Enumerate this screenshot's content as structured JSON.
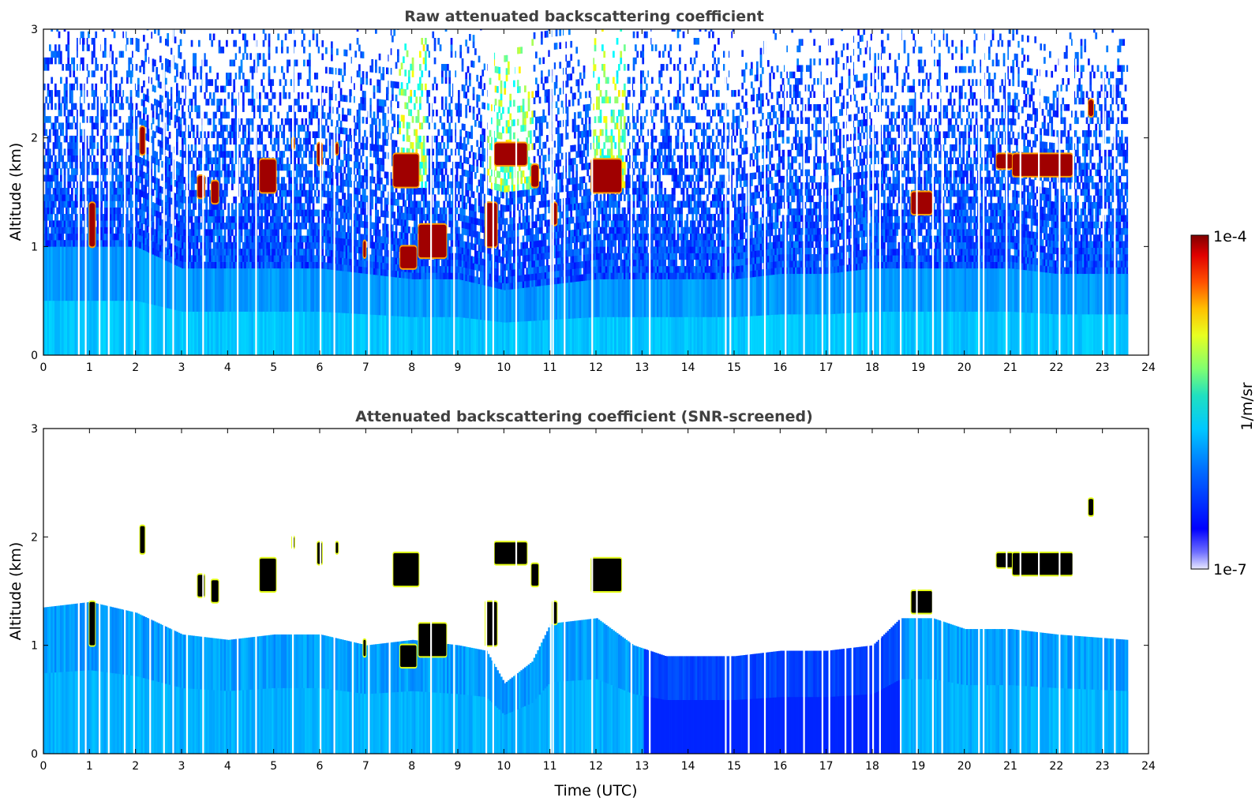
{
  "chart_data": [
    {
      "type": "heatmap",
      "title": "Raw attenuated backscattering coefficient",
      "xlabel": "",
      "ylabel": "Altitude (km)",
      "xlim": [
        0,
        24
      ],
      "ylim": [
        0,
        3
      ],
      "x_ticks": [
        "0",
        "1",
        "2",
        "3",
        "4",
        "5",
        "6",
        "7",
        "8",
        "9",
        "10",
        "11",
        "12",
        "13",
        "14",
        "15",
        "16",
        "17",
        "18",
        "19",
        "20",
        "21",
        "22",
        "23",
        "24"
      ],
      "y_ticks": [
        "0",
        "1",
        "2",
        "3"
      ],
      "data_end_time": 23.55,
      "screened": false,
      "gaps": [
        0.75,
        0.9,
        1.2,
        1.4,
        1.75,
        1.95,
        2.3,
        2.6,
        2.8,
        3.1,
        3.45,
        4.2,
        4.6,
        5.4,
        6.0,
        6.3,
        6.7,
        7.05,
        7.5,
        8.4,
        8.9,
        9.6,
        9.75,
        10.25,
        11.0,
        11.05,
        11.3,
        11.9,
        12.75,
        13.15,
        14.8,
        14.9,
        15.3,
        15.65,
        16.1,
        16.5,
        16.9,
        17.05,
        17.4,
        17.55,
        17.9,
        18.0,
        18.15,
        18.6,
        18.95,
        19.3,
        19.5,
        20.3,
        20.4,
        20.9,
        21.2,
        21.6,
        22.05,
        22.35,
        23.0,
        23.25
      ],
      "aerosol_top_km": [
        {
          "time": 0,
          "km": 1.0
        },
        {
          "time": 1,
          "km": 1.0
        },
        {
          "time": 2,
          "km": 1.0
        },
        {
          "time": 3,
          "km": 0.8
        },
        {
          "time": 4,
          "km": 0.8
        },
        {
          "time": 5,
          "km": 0.8
        },
        {
          "time": 6,
          "km": 0.8
        },
        {
          "time": 7,
          "km": 0.75
        },
        {
          "time": 8,
          "km": 0.7
        },
        {
          "time": 9,
          "km": 0.7
        },
        {
          "time": 10,
          "km": 0.6
        },
        {
          "time": 11,
          "km": 0.65
        },
        {
          "time": 12,
          "km": 0.7
        },
        {
          "time": 13,
          "km": 0.7
        },
        {
          "time": 14,
          "km": 0.7
        },
        {
          "time": 15,
          "km": 0.7
        },
        {
          "time": 16,
          "km": 0.75
        },
        {
          "time": 17,
          "km": 0.75
        },
        {
          "time": 18,
          "km": 0.8
        },
        {
          "time": 19,
          "km": 0.8
        },
        {
          "time": 20,
          "km": 0.8
        },
        {
          "time": 21,
          "km": 0.8
        },
        {
          "time": 22,
          "km": 0.75
        },
        {
          "time": 23,
          "km": 0.75
        },
        {
          "time": 23.55,
          "km": 0.75
        }
      ],
      "clouds": [
        {
          "t0": 1.0,
          "t1": 1.12,
          "base_km": 1.0,
          "top_km": 1.4
        },
        {
          "t0": 2.1,
          "t1": 2.2,
          "base_km": 1.85,
          "top_km": 2.1
        },
        {
          "t0": 3.35,
          "t1": 3.5,
          "base_km": 1.45,
          "top_km": 1.65
        },
        {
          "t0": 3.65,
          "t1": 3.8,
          "base_km": 1.4,
          "top_km": 1.6
        },
        {
          "t0": 4.7,
          "t1": 5.05,
          "base_km": 1.5,
          "top_km": 1.8
        },
        {
          "t0": 5.4,
          "t1": 5.45,
          "base_km": 1.9,
          "top_km": 2.0
        },
        {
          "t0": 5.95,
          "t1": 6.05,
          "base_km": 1.75,
          "top_km": 1.95
        },
        {
          "t0": 6.35,
          "t1": 6.4,
          "base_km": 1.85,
          "top_km": 1.95
        },
        {
          "t0": 6.95,
          "t1": 7.0,
          "base_km": 0.9,
          "top_km": 1.05
        },
        {
          "t0": 7.6,
          "t1": 8.15,
          "base_km": 1.55,
          "top_km": 1.85
        },
        {
          "t0": 7.75,
          "t1": 8.1,
          "base_km": 0.8,
          "top_km": 1.0
        },
        {
          "t0": 8.15,
          "t1": 8.75,
          "base_km": 0.9,
          "top_km": 1.2
        },
        {
          "t0": 9.6,
          "t1": 9.85,
          "base_km": 1.0,
          "top_km": 1.4
        },
        {
          "t0": 9.8,
          "t1": 10.5,
          "base_km": 1.75,
          "top_km": 1.95
        },
        {
          "t0": 10.6,
          "t1": 10.75,
          "base_km": 1.55,
          "top_km": 1.75
        },
        {
          "t0": 11.05,
          "t1": 11.15,
          "base_km": 1.2,
          "top_km": 1.4
        },
        {
          "t0": 11.9,
          "t1": 12.55,
          "base_km": 1.5,
          "top_km": 1.8
        },
        {
          "t0": 18.85,
          "t1": 19.3,
          "base_km": 1.3,
          "top_km": 1.5
        },
        {
          "t0": 20.7,
          "t1": 21.05,
          "base_km": 1.72,
          "top_km": 1.85
        },
        {
          "t0": 21.05,
          "t1": 22.35,
          "base_km": 1.65,
          "top_km": 1.85
        },
        {
          "t0": 22.7,
          "t1": 22.8,
          "base_km": 2.2,
          "top_km": 2.35
        }
      ],
      "colorbar": {
        "min": "1e-7",
        "max": "1e-4",
        "label": "1/m/sr",
        "scale": "log",
        "colormap": "jet"
      }
    },
    {
      "type": "heatmap",
      "title": "Attenuated backscattering coefficient (SNR-screened)",
      "xlabel": "Time (UTC)",
      "ylabel": "Altitude (km)",
      "xlim": [
        0,
        24
      ],
      "ylim": [
        0,
        3
      ],
      "x_ticks": [
        "0",
        "1",
        "2",
        "3",
        "4",
        "5",
        "6",
        "7",
        "8",
        "9",
        "10",
        "11",
        "12",
        "13",
        "14",
        "15",
        "16",
        "17",
        "18",
        "19",
        "20",
        "21",
        "22",
        "23",
        "24"
      ],
      "y_ticks": [
        "0",
        "1",
        "2",
        "3"
      ],
      "screened": true,
      "screen_top_km": [
        {
          "time": 0,
          "km": 1.35
        },
        {
          "time": 1,
          "km": 1.4
        },
        {
          "time": 2,
          "km": 1.3
        },
        {
          "time": 3,
          "km": 1.1
        },
        {
          "time": 4,
          "km": 1.05
        },
        {
          "time": 5,
          "km": 1.1
        },
        {
          "time": 6,
          "km": 1.1
        },
        {
          "time": 7,
          "km": 1.0
        },
        {
          "time": 8,
          "km": 1.05
        },
        {
          "time": 9,
          "km": 1.0
        },
        {
          "time": 9.6,
          "km": 0.95
        },
        {
          "time": 10,
          "km": 0.65
        },
        {
          "time": 10.6,
          "km": 0.85
        },
        {
          "time": 11,
          "km": 1.2
        },
        {
          "time": 12,
          "km": 1.25
        },
        {
          "time": 12.8,
          "km": 1.0
        },
        {
          "time": 13.5,
          "km": 0.9
        },
        {
          "time": 15,
          "km": 0.9
        },
        {
          "time": 16,
          "km": 0.95
        },
        {
          "time": 17,
          "km": 0.95
        },
        {
          "time": 18,
          "km": 1.0
        },
        {
          "time": 18.6,
          "km": 1.25
        },
        {
          "time": 19.3,
          "km": 1.25
        },
        {
          "time": 20,
          "km": 1.15
        },
        {
          "time": 21,
          "km": 1.15
        },
        {
          "time": 22,
          "km": 1.1
        },
        {
          "time": 23.55,
          "km": 1.05
        }
      ],
      "attenuated_cloud_color": "#000000"
    }
  ]
}
